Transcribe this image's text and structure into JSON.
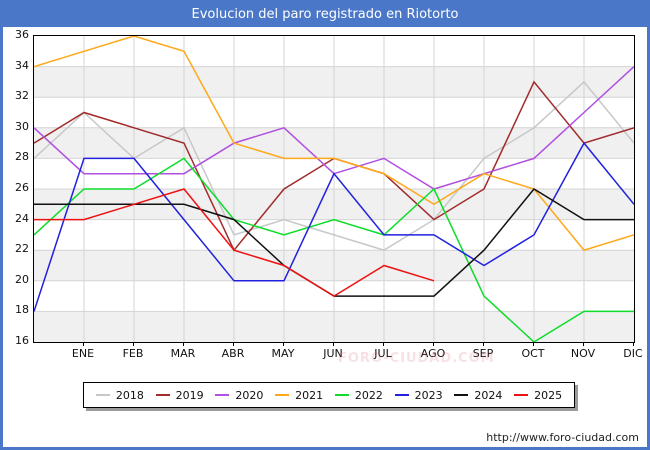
{
  "header": {
    "title": "Evolucion del paro registrado en Riotorto",
    "bar_color": "#4a77c8",
    "title_color": "#ffffff"
  },
  "footer": {
    "url": "http://www.foro-ciudad.com"
  },
  "watermark": "FORO-CIUDAD.COM",
  "chart_data": {
    "type": "line",
    "title": "Evolucion del paro registrado en Riotorto",
    "xlabel": "",
    "ylabel": "",
    "ylim": [
      16,
      36
    ],
    "ytick_step": 2,
    "grid": true,
    "legend_position": "bottom",
    "band_color": "#f0f0f0",
    "grid_color": "#d4d4d4",
    "categories": [
      "",
      "ENE",
      "FEB",
      "MAR",
      "ABR",
      "MAY",
      "JUN",
      "JUL",
      "AGO",
      "SEP",
      "OCT",
      "NOV",
      "DIC"
    ],
    "series": [
      {
        "name": "2018",
        "color": "#c8c8c8",
        "values": [
          28,
          31,
          28,
          30,
          23,
          24,
          23,
          22,
          24,
          28,
          30,
          33,
          29
        ]
      },
      {
        "name": "2019",
        "color": "#a22c2c",
        "values": [
          29,
          31,
          30,
          29,
          22,
          26,
          28,
          27,
          24,
          26,
          33,
          29,
          30
        ]
      },
      {
        "name": "2020",
        "color": "#b14fe0",
        "values": [
          30,
          27,
          27,
          27,
          29,
          30,
          27,
          28,
          26,
          27,
          28,
          31,
          34
        ]
      },
      {
        "name": "2021",
        "color": "#ffa819",
        "values": [
          34,
          35,
          36,
          35,
          29,
          28,
          28,
          27,
          25,
          27,
          26,
          22,
          23
        ]
      },
      {
        "name": "2022",
        "color": "#0ddd2a",
        "values": [
          23,
          26,
          26,
          28,
          24,
          23,
          24,
          23,
          26,
          19,
          16,
          18,
          18
        ]
      },
      {
        "name": "2023",
        "color": "#2121dd",
        "values": [
          18,
          28,
          28,
          24,
          20,
          20,
          27,
          23,
          23,
          21,
          23,
          29,
          25
        ]
      },
      {
        "name": "2024",
        "color": "#111111",
        "values": [
          25,
          25,
          25,
          25,
          24,
          21,
          19,
          19,
          19,
          22,
          26,
          24,
          24
        ]
      },
      {
        "name": "2025",
        "color": "#ee1111",
        "values": [
          24,
          24,
          25,
          26,
          22,
          21,
          19,
          21,
          20,
          null,
          null,
          null,
          null
        ]
      }
    ]
  }
}
